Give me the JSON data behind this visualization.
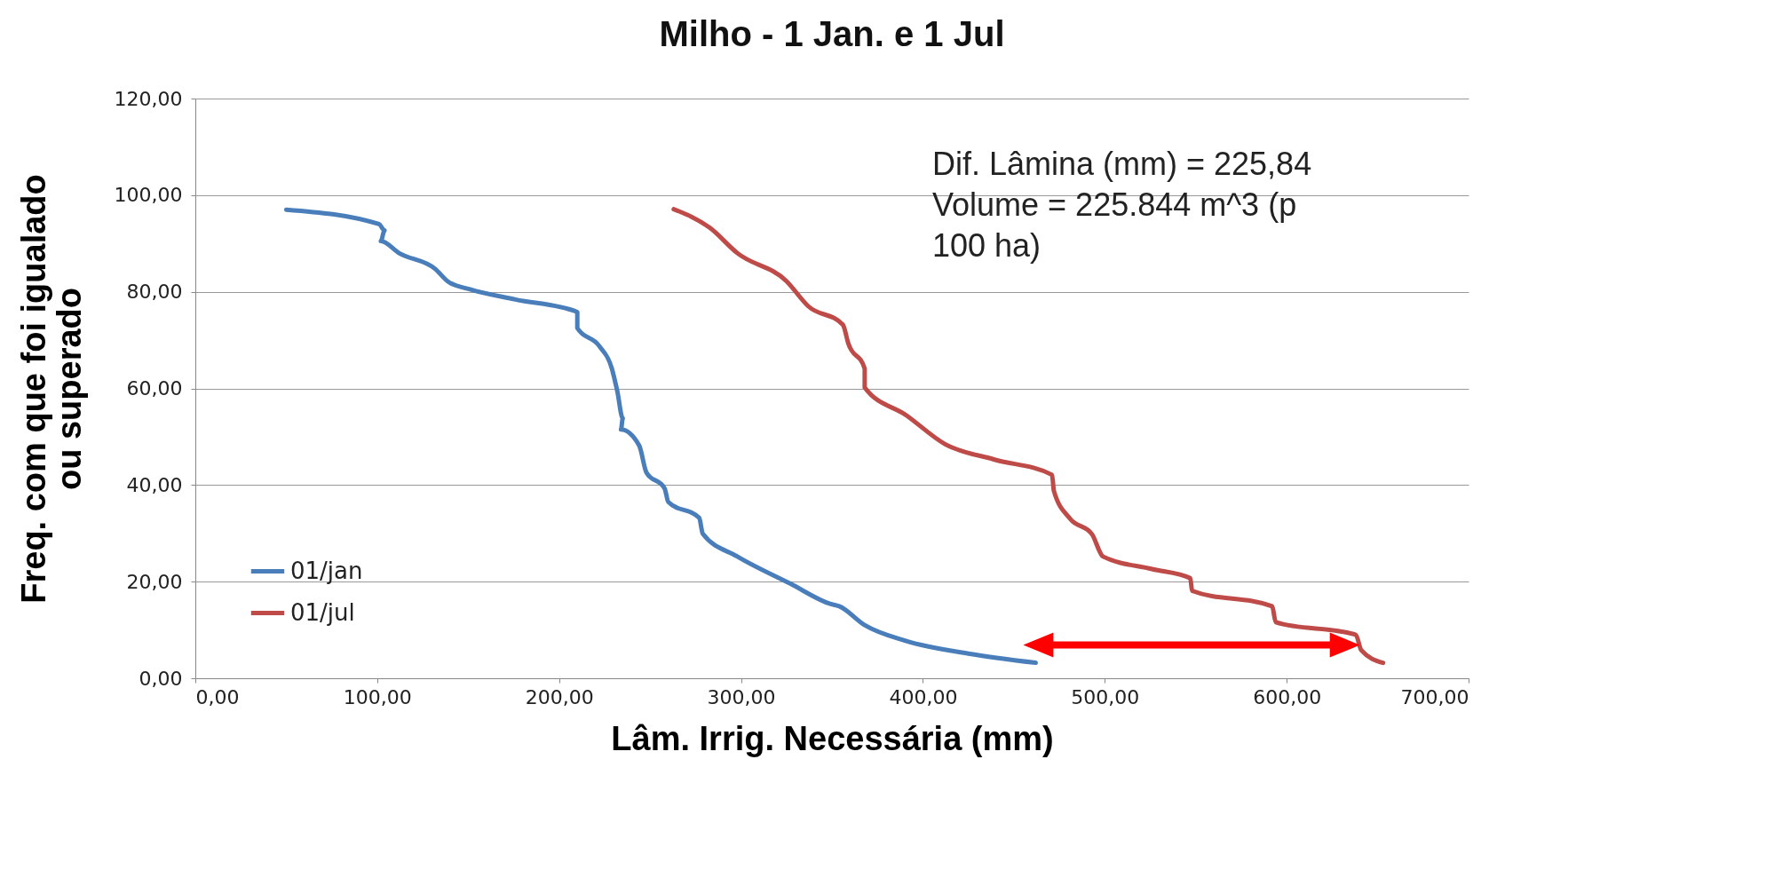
{
  "chart_data": {
    "type": "line",
    "title": "Milho - 1 Jan. e 1 Jul",
    "xlabel": "Lâm. Irrig. Necessária  (mm)",
    "ylabel": "Freq. com que foi igualado ou superado",
    "xlim": [
      0,
      700
    ],
    "xticks": [
      {
        "value": 0,
        "label": "0,00"
      },
      {
        "value": 100,
        "label": "100,00"
      },
      {
        "value": 200,
        "label": "200,00"
      },
      {
        "value": 300,
        "label": "300,00"
      },
      {
        "value": 400,
        "label": "400,00"
      },
      {
        "value": 500,
        "label": "500,00"
      },
      {
        "value": 600,
        "label": "600,00"
      },
      {
        "value": 700,
        "label": "700,00"
      }
    ],
    "ylim": [
      0,
      120
    ],
    "yticks": [
      {
        "value": 0,
        "label": "0,00"
      },
      {
        "value": 20,
        "label": "20,00"
      },
      {
        "value": 40,
        "label": "40,00"
      },
      {
        "value": 60,
        "label": "60,00"
      },
      {
        "value": 80,
        "label": "80,00"
      },
      {
        "value": 100,
        "label": "100,00"
      },
      {
        "value": 120,
        "label": "120,00"
      }
    ],
    "grid": "y",
    "legend": "bottom left",
    "marker": "none",
    "line_style": "solid",
    "annotations": [
      "Dif. Lâmina (mm) = 225,84",
      "Volume = 225.844 m^3 (p",
      "100 ha)"
    ],
    "series": [
      {
        "name": "01/jan",
        "color": "#4a7ebb",
        "x": [
          50,
          101,
          104,
          102,
          112,
          132,
          139,
          151,
          176,
          210,
          210,
          222,
          229,
          232,
          235,
          234,
          244,
          248,
          258,
          260,
          277,
          279,
          298,
          327,
          349,
          354,
          368,
          391,
          425,
          462
        ],
        "values": [
          97,
          94,
          92.7,
          90.5,
          88,
          84.7,
          82.1,
          80.5,
          78.4,
          75.8,
          72.5,
          68.8,
          64.1,
          59.4,
          53.8,
          51.5,
          48.2,
          42.6,
          39.3,
          36.5,
          33.2,
          29.9,
          25.2,
          19.6,
          15.4,
          14.9,
          11,
          7.7,
          5.1,
          3.2
        ]
      },
      {
        "name": "01/jul",
        "color": "#be4b48",
        "x": [
          263,
          283,
          298,
          325,
          337,
          356,
          359,
          368,
          368,
          391,
          412,
          439,
          471,
          472,
          481,
          493,
          499,
          526,
          547,
          548,
          592,
          594,
          638,
          641,
          653
        ],
        "values": [
          97.1,
          93.2,
          88,
          82.2,
          77,
          73.2,
          69.3,
          64.1,
          60.2,
          54.4,
          48.5,
          45.3,
          42.1,
          38.8,
          33,
          29.8,
          25.2,
          22.6,
          20.7,
          18.1,
          14.9,
          11.6,
          9,
          5.8,
          3.2
        ]
      }
    ]
  }
}
